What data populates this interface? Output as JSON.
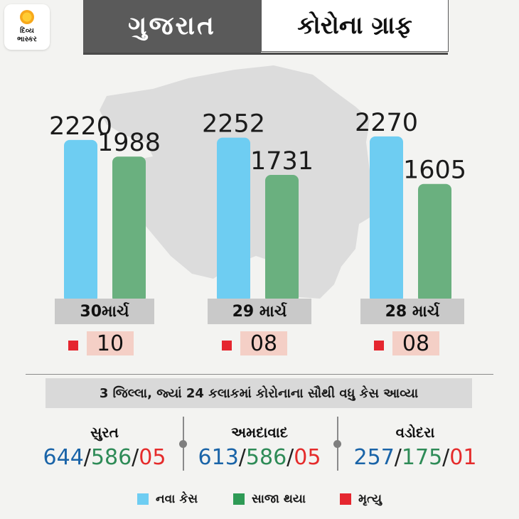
{
  "logo": {
    "line1": "દિવ્ય",
    "line2": "ભાસ્કર"
  },
  "header": {
    "left": "ગુજરાત",
    "right": "કોરોના ગ્રાફ"
  },
  "colors": {
    "new_cases": "#6ecdf2",
    "recovered": "#6ab07f",
    "deaths": "#e5262f"
  },
  "chart_data": {
    "type": "bar",
    "categories": [
      "30માર્ચ",
      "29 માર્ચ",
      "28 માર્ચ"
    ],
    "series": [
      {
        "name": "નવા કેસ",
        "values": [
          2220,
          2252,
          2270
        ]
      },
      {
        "name": "સાજા થયા",
        "values": [
          1988,
          1731,
          1605
        ]
      }
    ],
    "deaths": [
      "10",
      "08",
      "08"
    ],
    "death_label": "મૃત્યુ"
  },
  "banner": "3 જિલ્લા, જ્યાં 24 કલાકમાં કોરોનાના સૌથી વધુ કેસ આવ્યા",
  "districts": [
    {
      "name": "સુરત",
      "new": "644",
      "recovered": "586",
      "deaths": "05"
    },
    {
      "name": "અમદાવાદ",
      "new": "613",
      "recovered": "586",
      "deaths": "05"
    },
    {
      "name": "વડોદરા",
      "new": "257",
      "recovered": "175",
      "deaths": "01"
    }
  ],
  "legend": {
    "new": "નવા કેસ",
    "recovered": "સાજા થયા",
    "deaths": "મૃત્યુ"
  }
}
